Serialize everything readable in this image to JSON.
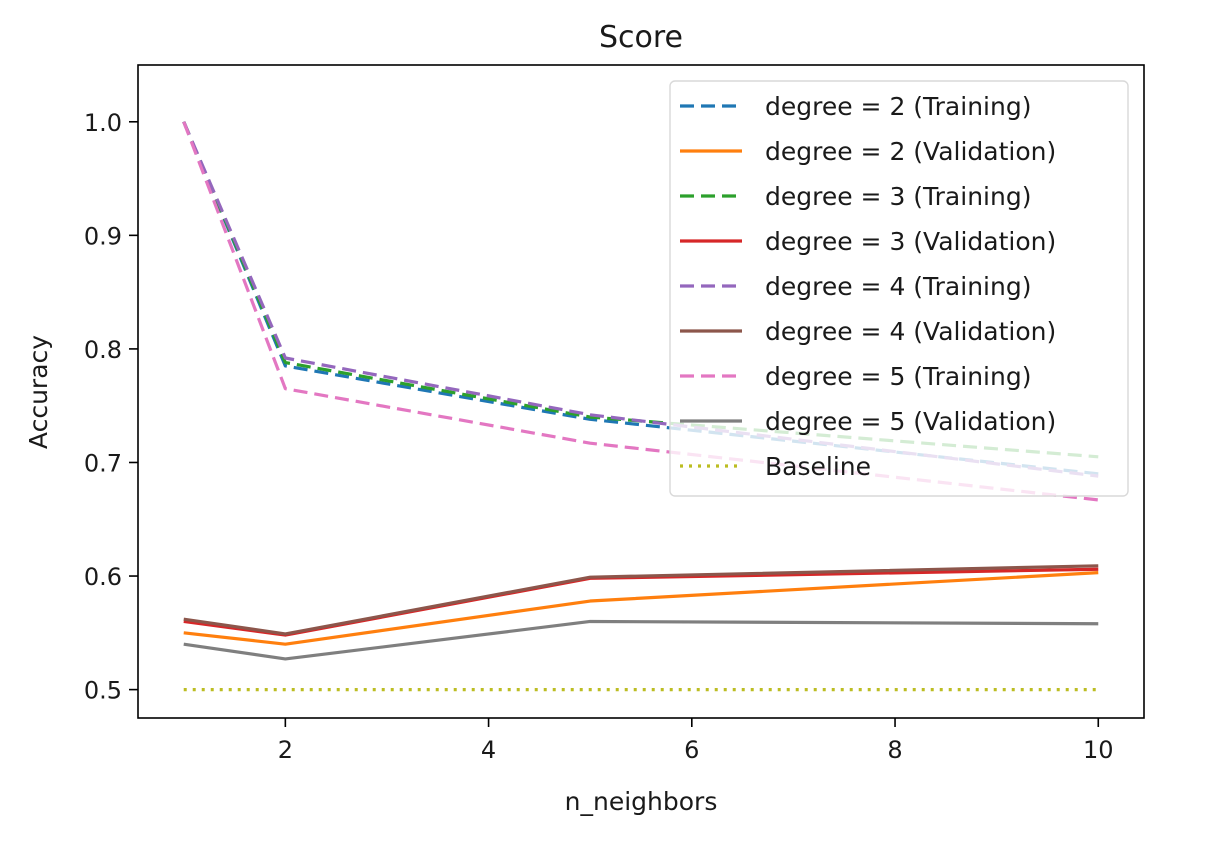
{
  "chart_data": {
    "type": "line",
    "title": "Score",
    "xlabel": "n_neighbors",
    "ylabel": "Accuracy",
    "xlim": [
      0.55,
      10.45
    ],
    "ylim": [
      0.475,
      1.05
    ],
    "xticks": [
      2,
      4,
      6,
      8,
      10
    ],
    "xtick_labels": [
      "2",
      "4",
      "6",
      "8",
      "10"
    ],
    "yticks": [
      0.5,
      0.6,
      0.7,
      0.8,
      0.9,
      1.0
    ],
    "ytick_labels": [
      "0.5",
      "0.6",
      "0.7",
      "0.8",
      "0.9",
      "1.0"
    ],
    "grid": false,
    "legend_position": "top-right",
    "x": [
      1,
      2,
      5,
      10
    ],
    "series": [
      {
        "name": "degree = 2 (Training)",
        "values": [
          1.0,
          0.785,
          0.738,
          0.69
        ],
        "color": "#1f77b4",
        "style": "dashed"
      },
      {
        "name": "degree = 2 (Validation)",
        "values": [
          0.55,
          0.54,
          0.578,
          0.603
        ],
        "color": "#ff7f0e",
        "style": "solid"
      },
      {
        "name": "degree = 3 (Training)",
        "values": [
          1.0,
          0.788,
          0.74,
          0.705
        ],
        "color": "#2ca02c",
        "style": "dashed"
      },
      {
        "name": "degree = 3 (Validation)",
        "values": [
          0.56,
          0.548,
          0.598,
          0.606
        ],
        "color": "#d62728",
        "style": "solid"
      },
      {
        "name": "degree = 4 (Training)",
        "values": [
          1.0,
          0.792,
          0.742,
          0.688
        ],
        "color": "#9467bd",
        "style": "dashed"
      },
      {
        "name": "degree = 4 (Validation)",
        "values": [
          0.562,
          0.549,
          0.599,
          0.609
        ],
        "color": "#8c564b",
        "style": "solid"
      },
      {
        "name": "degree = 5 (Training)",
        "values": [
          1.0,
          0.765,
          0.717,
          0.667
        ],
        "color": "#e377c2",
        "style": "dashed"
      },
      {
        "name": "degree = 5 (Validation)",
        "values": [
          0.54,
          0.527,
          0.56,
          0.558
        ],
        "color": "#7f7f7f",
        "style": "solid"
      },
      {
        "name": "Baseline",
        "values": [
          0.5,
          0.5,
          0.5,
          0.5
        ],
        "color": "#bcbd22",
        "style": "dotted"
      }
    ]
  }
}
